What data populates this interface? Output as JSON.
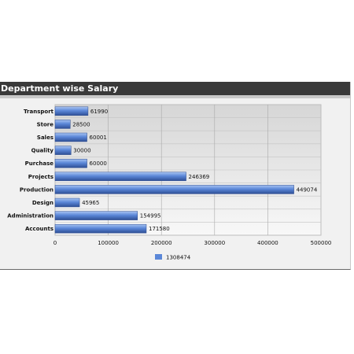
{
  "chart_data": {
    "type": "bar",
    "orientation": "horizontal",
    "title": "Department wise Salary",
    "categories": [
      "Transport",
      "Store",
      "Sales",
      "Quality",
      "Purchase",
      "Projects",
      "Production",
      "Design",
      "Administration",
      "Accounts"
    ],
    "series": [
      {
        "name": "1308474",
        "values": [
          61990,
          28500,
          60001,
          30000,
          60000,
          246369,
          449074,
          45965,
          154995,
          171580
        ],
        "color": "#5b87d8"
      }
    ],
    "xlim": [
      0,
      500000
    ],
    "xticks": [
      "0",
      "100000",
      "200000",
      "300000",
      "400000",
      "500000"
    ],
    "grid": true,
    "legend": "bottom-center",
    "data_labels": true
  }
}
